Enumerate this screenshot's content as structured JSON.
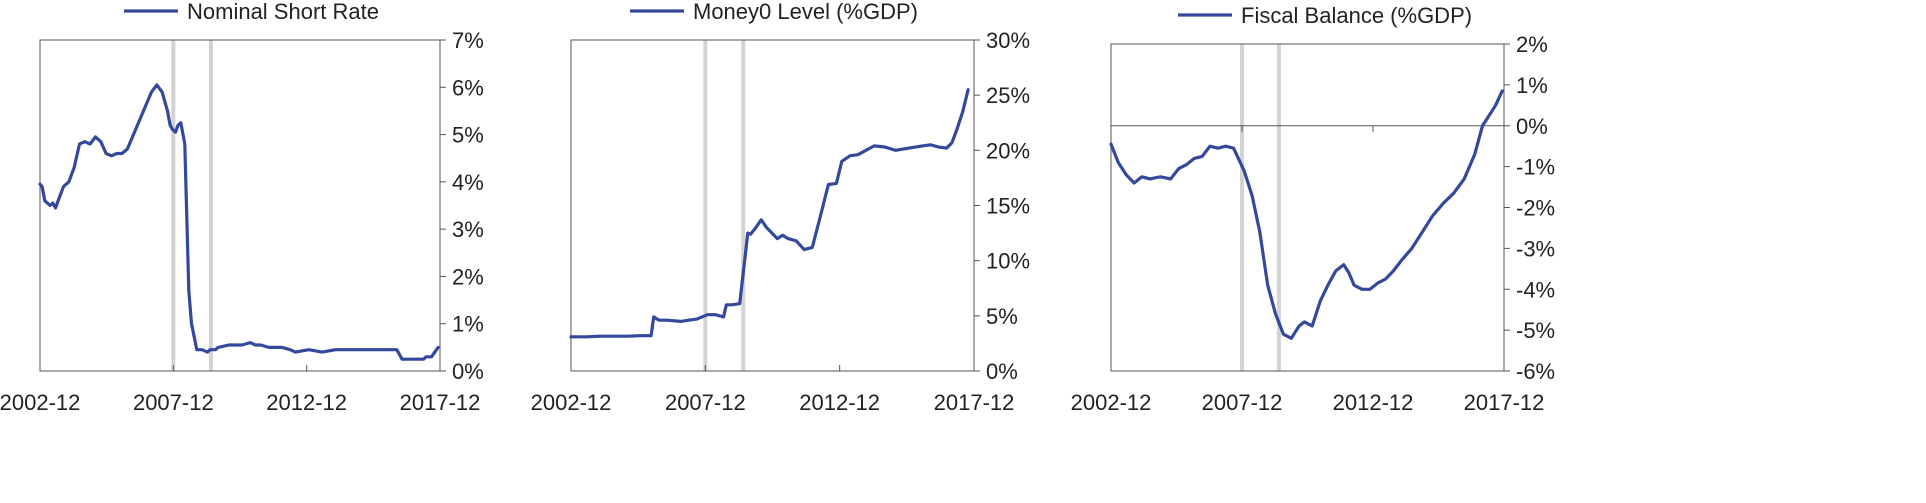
{
  "colors": {
    "series_line": "#34499b",
    "axis": "#555555",
    "event_bar": "#d3d3d3"
  },
  "chart_data": [
    {
      "type": "line",
      "legend": "Nominal Short Rate",
      "legend_position": "top",
      "y_axis_side": "right",
      "x_tick_labels": [
        "2002-12",
        "2007-12",
        "2012-12",
        "2017-12"
      ],
      "x_range": [
        2002.92,
        2017.92
      ],
      "ylim": [
        0,
        7
      ],
      "y_ticks": [
        0,
        1,
        2,
        3,
        4,
        5,
        6,
        7
      ],
      "y_tick_labels": [
        "0%",
        "1%",
        "2%",
        "3%",
        "4%",
        "5%",
        "6%",
        "7%"
      ],
      "event_lines_x": [
        2007.92,
        2009.33
      ],
      "grid": false,
      "series": [
        {
          "x": [
            2002.92,
            2003.0,
            2003.1,
            2003.2,
            2003.3,
            2003.4,
            2003.5,
            2003.6,
            2003.7,
            2003.8,
            2004.0,
            2004.2,
            2004.4,
            2004.6,
            2004.8,
            2005.0,
            2005.2,
            2005.4,
            2005.6,
            2005.8,
            2006.0,
            2006.2,
            2006.5,
            2006.8,
            2007.1,
            2007.3,
            2007.5,
            2007.7,
            2007.8,
            2007.9,
            2008.0,
            2008.1,
            2008.2,
            2008.35,
            2008.5,
            2008.6,
            2008.8,
            2008.9,
            2009.0,
            2009.2,
            2009.3,
            2009.5,
            2009.6,
            2010.0,
            2010.5,
            2010.8,
            2011.0,
            2011.2,
            2011.5,
            2012.0,
            2012.3,
            2012.5,
            2013.0,
            2013.5,
            2014.0,
            2014.5,
            2015.0,
            2015.5,
            2016.0,
            2016.3,
            2016.5,
            2016.8,
            2017.0,
            2017.3,
            2017.4,
            2017.6,
            2017.85
          ],
          "y": [
            3.95,
            3.9,
            3.6,
            3.55,
            3.5,
            3.55,
            3.45,
            3.6,
            3.75,
            3.9,
            4.0,
            4.3,
            4.8,
            4.85,
            4.8,
            4.95,
            4.85,
            4.6,
            4.55,
            4.6,
            4.6,
            4.7,
            5.1,
            5.5,
            5.9,
            6.05,
            5.9,
            5.5,
            5.2,
            5.1,
            5.05,
            5.2,
            5.25,
            4.8,
            1.7,
            1.0,
            0.45,
            0.45,
            0.45,
            0.4,
            0.45,
            0.45,
            0.5,
            0.55,
            0.55,
            0.6,
            0.55,
            0.55,
            0.5,
            0.5,
            0.45,
            0.4,
            0.45,
            0.4,
            0.45,
            0.45,
            0.45,
            0.45,
            0.45,
            0.45,
            0.25,
            0.25,
            0.25,
            0.25,
            0.3,
            0.3,
            0.5
          ]
        }
      ]
    },
    {
      "type": "line",
      "legend": "Money0 Level (%GDP)",
      "legend_position": "top",
      "y_axis_side": "right",
      "x_tick_labels": [
        "2002-12",
        "2007-12",
        "2012-12",
        "2017-12"
      ],
      "x_range": [
        2002.92,
        2017.92
      ],
      "ylim": [
        0,
        30
      ],
      "y_ticks": [
        0,
        5,
        10,
        15,
        20,
        25,
        30
      ],
      "y_tick_labels": [
        "0%",
        "5%",
        "10%",
        "15%",
        "20%",
        "25%",
        "30%"
      ],
      "event_lines_x": [
        2007.92,
        2009.33
      ],
      "grid": false,
      "series": [
        {
          "x": [
            2002.92,
            2003.5,
            2004.0,
            2004.5,
            2005.0,
            2005.5,
            2005.9,
            2006.0,
            2006.2,
            2006.5,
            2007.0,
            2007.3,
            2007.6,
            2008.0,
            2008.3,
            2008.6,
            2008.7,
            2008.9,
            2009.2,
            2009.5,
            2009.6,
            2009.8,
            2010.0,
            2010.2,
            2010.4,
            2010.6,
            2010.8,
            2011.0,
            2011.3,
            2011.6,
            2011.9,
            2012.2,
            2012.5,
            2012.8,
            2013.0,
            2013.3,
            2013.6,
            2013.9,
            2014.2,
            2014.6,
            2015.0,
            2015.5,
            2016.0,
            2016.3,
            2016.6,
            2016.9,
            2017.1,
            2017.3,
            2017.5,
            2017.7
          ],
          "y": [
            3.1,
            3.1,
            3.15,
            3.15,
            3.15,
            3.2,
            3.2,
            4.9,
            4.6,
            4.6,
            4.5,
            4.6,
            4.7,
            5.1,
            5.1,
            4.9,
            6.0,
            6.0,
            6.1,
            12.5,
            12.4,
            13.0,
            13.7,
            13.0,
            12.5,
            12.0,
            12.3,
            12.0,
            11.8,
            11.0,
            11.2,
            14.0,
            16.9,
            17.0,
            19.0,
            19.5,
            19.6,
            20.0,
            20.4,
            20.3,
            20.0,
            20.2,
            20.4,
            20.5,
            20.3,
            20.2,
            20.7,
            22.0,
            23.5,
            25.5
          ]
        }
      ]
    },
    {
      "type": "line",
      "legend": "Fiscal Balance (%GDP)",
      "legend_position": "top",
      "y_axis_side": "right",
      "x_tick_labels": [
        "2002-12",
        "2007-12",
        "2012-12",
        "2017-12"
      ],
      "x_range": [
        2002.92,
        2017.92
      ],
      "ylim": [
        -6,
        2
      ],
      "y_ticks": [
        -6,
        -5,
        -4,
        -3,
        -2,
        -1,
        0,
        1,
        2
      ],
      "y_tick_labels": [
        "-6%",
        "-5%",
        "-4%",
        "-3%",
        "-2%",
        "-1%",
        "0%",
        "1%",
        "2%"
      ],
      "zero_line": 0,
      "event_lines_x": [
        2007.92,
        2009.33
      ],
      "grid": false,
      "series": [
        {
          "x": [
            2002.92,
            2003.2,
            2003.5,
            2003.8,
            2004.1,
            2004.4,
            2004.8,
            2005.2,
            2005.5,
            2005.8,
            2006.1,
            2006.4,
            2006.7,
            2007.0,
            2007.3,
            2007.6,
            2008.0,
            2008.3,
            2008.6,
            2008.9,
            2009.2,
            2009.5,
            2009.8,
            2010.1,
            2010.3,
            2010.6,
            2010.9,
            2011.2,
            2011.5,
            2011.8,
            2012.0,
            2012.2,
            2012.5,
            2012.8,
            2013.1,
            2013.4,
            2013.7,
            2014.0,
            2014.4,
            2014.8,
            2015.2,
            2015.6,
            2016.0,
            2016.4,
            2016.8,
            2017.1,
            2017.4,
            2017.6,
            2017.85
          ],
          "y": [
            -0.45,
            -0.9,
            -1.2,
            -1.4,
            -1.25,
            -1.3,
            -1.25,
            -1.3,
            -1.05,
            -0.95,
            -0.8,
            -0.75,
            -0.5,
            -0.55,
            -0.5,
            -0.55,
            -1.1,
            -1.7,
            -2.6,
            -3.9,
            -4.6,
            -5.1,
            -5.2,
            -4.9,
            -4.8,
            -4.9,
            -4.3,
            -3.9,
            -3.55,
            -3.4,
            -3.6,
            -3.9,
            -4.0,
            -4.0,
            -3.85,
            -3.75,
            -3.55,
            -3.3,
            -3.0,
            -2.6,
            -2.2,
            -1.9,
            -1.65,
            -1.3,
            -0.7,
            0.0,
            0.3,
            0.5,
            0.85
          ]
        }
      ]
    }
  ]
}
